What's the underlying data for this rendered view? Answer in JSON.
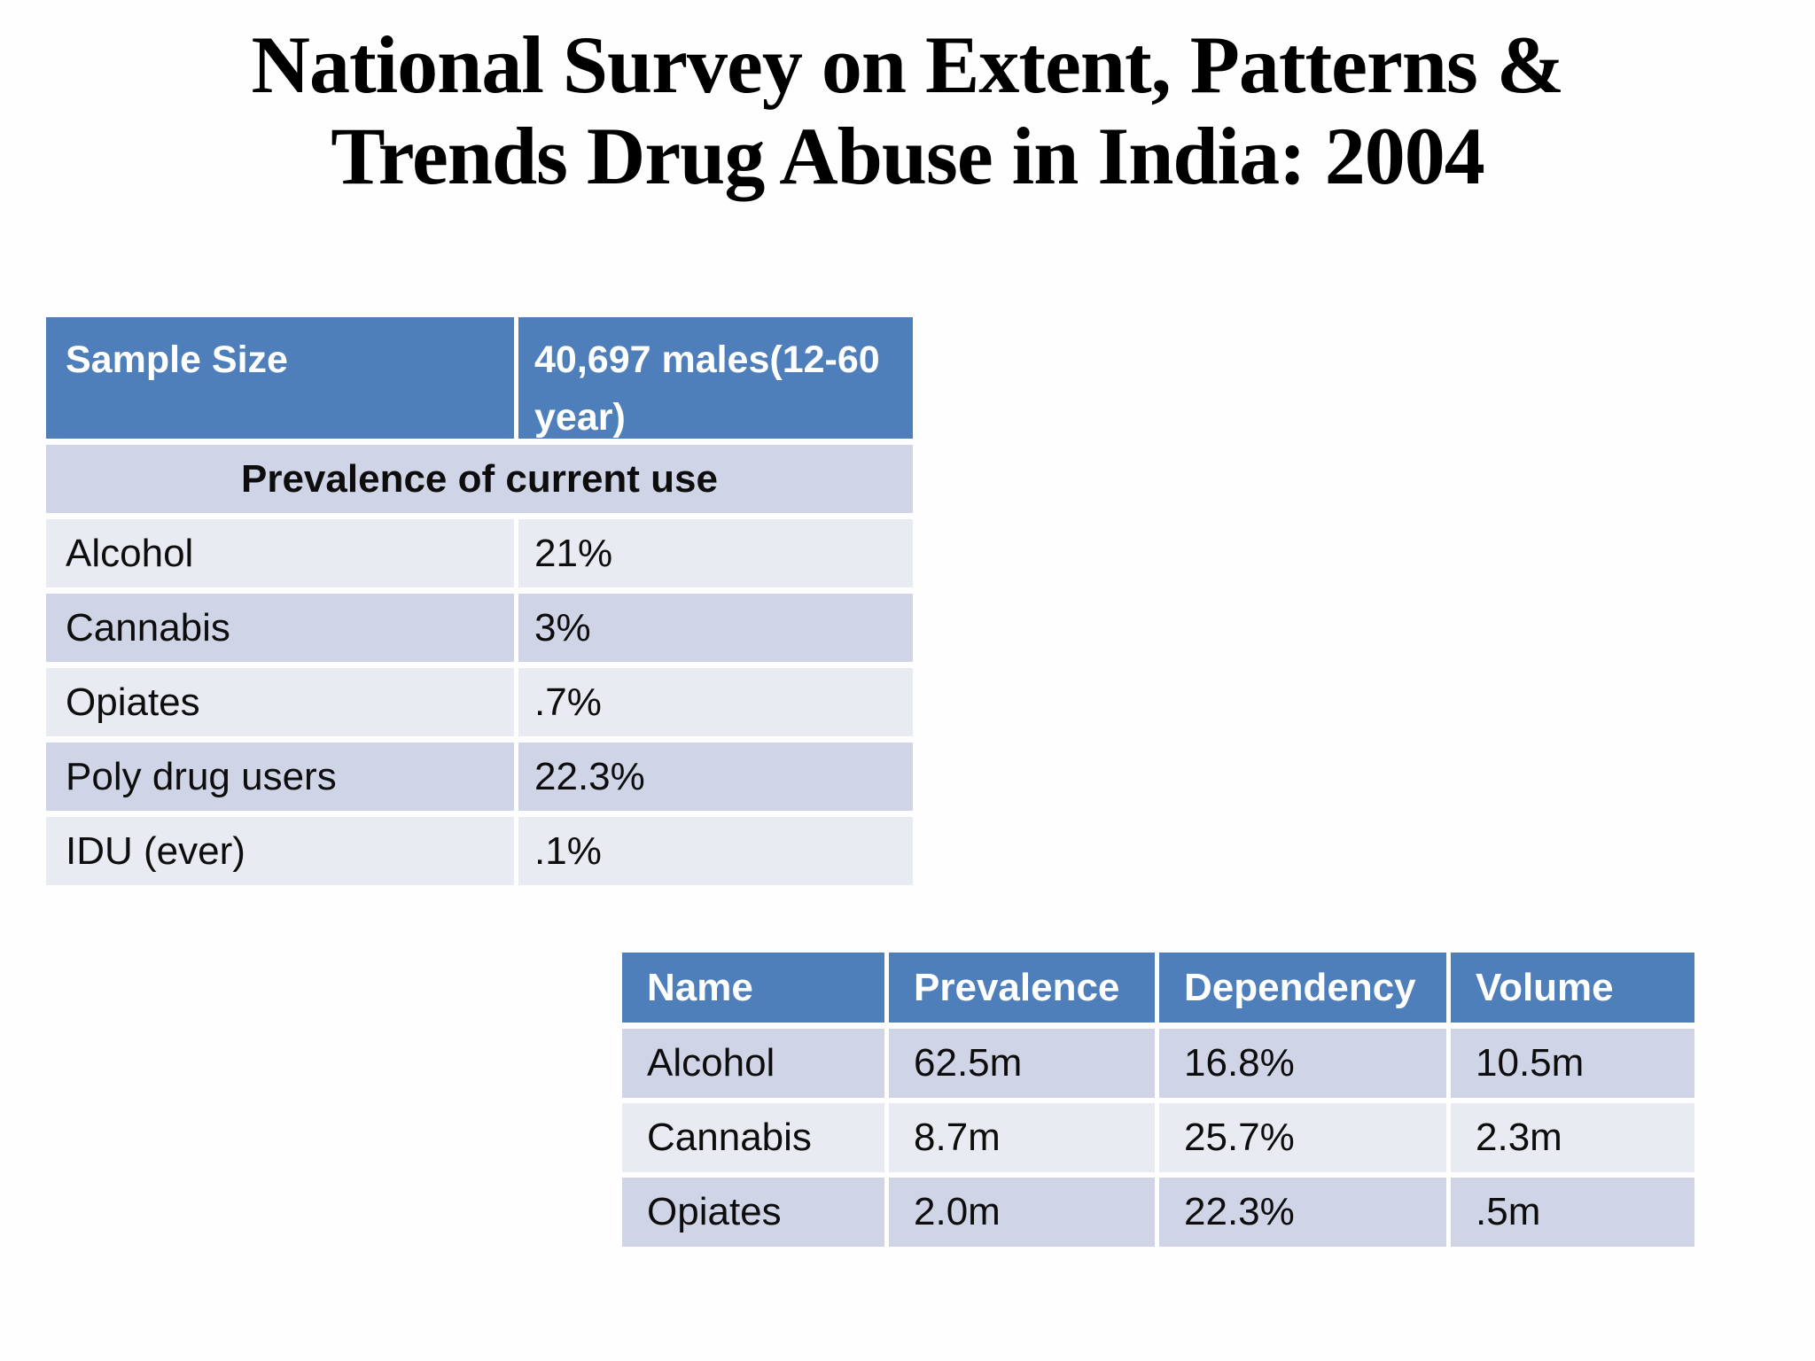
{
  "title": {
    "line1": "National Survey on Extent, Patterns &",
    "line2": "Trends Drug Abuse in India: 2004"
  },
  "table1": {
    "header": {
      "label": "Sample Size",
      "value": "40,697 males(12-60 year)"
    },
    "band_label": "Prevalence of current use",
    "rows": [
      {
        "name": "Alcohol",
        "value": "21%"
      },
      {
        "name": "Cannabis",
        "value": "3%"
      },
      {
        "name": "Opiates",
        "value": ".7%"
      },
      {
        "name": "Poly drug users",
        "value": "22.3%"
      },
      {
        "name": "IDU (ever)",
        "value": ".1%"
      }
    ]
  },
  "table2": {
    "columns": [
      "Name",
      "Prevalence",
      "Dependency",
      "Volume"
    ],
    "rows": [
      [
        "Alcohol",
        "62.5m",
        "16.8%",
        "10.5m"
      ],
      [
        "Cannabis",
        "8.7m",
        "25.7%",
        "2.3m"
      ],
      [
        "Opiates",
        "2.0m",
        "22.3%",
        ".5m"
      ]
    ]
  },
  "colors": {
    "header_blue": "#4e7fba",
    "band_dark": "#cfd5e6",
    "band_light": "#e9ebf2",
    "text_black": "#0d0d0d",
    "slide_bg": "#fefefe"
  }
}
